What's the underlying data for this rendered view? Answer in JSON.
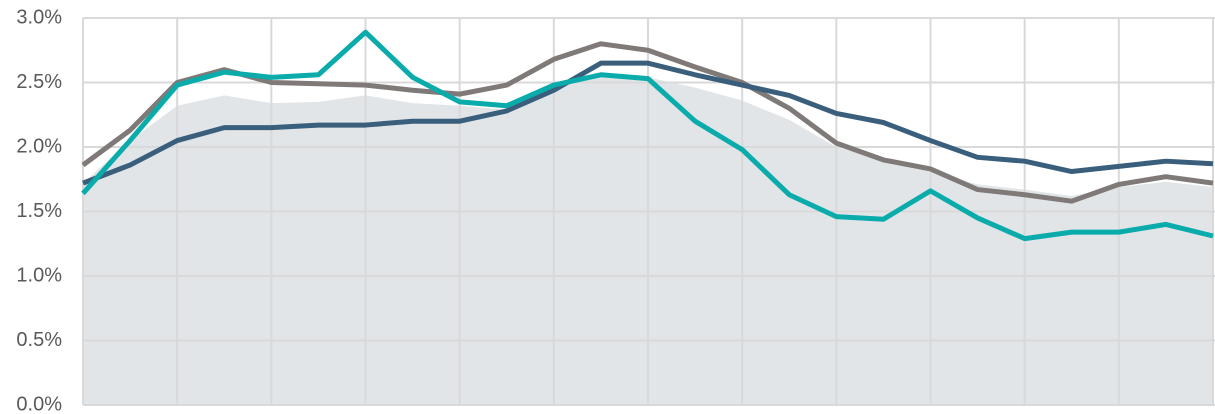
{
  "chart_data": {
    "type": "line",
    "categories": [
      null,
      null,
      null,
      null,
      null,
      null,
      null,
      null,
      null,
      null,
      null,
      null,
      null,
      null,
      null,
      null,
      null,
      null,
      null,
      null,
      null,
      null,
      null,
      null,
      null
    ],
    "series": [
      {
        "type": "area",
        "color": "#e1e5e8",
        "values": [
          1.72,
          2.05,
          2.32,
          2.4,
          2.34,
          2.35,
          2.4,
          2.34,
          2.32,
          2.29,
          2.5,
          2.56,
          2.54,
          2.46,
          2.36,
          2.21,
          2.0,
          1.9,
          1.81,
          1.71,
          1.67,
          1.62,
          1.69,
          1.73,
          1.69
        ]
      },
      {
        "color": "#7f7a78",
        "values": [
          1.86,
          2.13,
          2.5,
          2.6,
          2.5,
          2.49,
          2.48,
          2.44,
          2.41,
          2.48,
          2.68,
          2.8,
          2.75,
          2.62,
          2.5,
          2.3,
          2.03,
          1.9,
          1.83,
          1.67,
          1.63,
          1.58,
          1.71,
          1.77,
          1.72
        ]
      },
      {
        "color": "#3a5f7d",
        "values": [
          1.72,
          1.86,
          2.05,
          2.15,
          2.15,
          2.17,
          2.17,
          2.2,
          2.2,
          2.28,
          2.44,
          2.65,
          2.65,
          2.56,
          2.48,
          2.4,
          2.26,
          2.19,
          2.05,
          1.92,
          1.89,
          1.81,
          1.85,
          1.89,
          1.87
        ]
      },
      {
        "color": "#0aabab",
        "values": [
          1.64,
          2.05,
          2.48,
          2.58,
          2.54,
          2.56,
          2.89,
          2.54,
          2.35,
          2.32,
          2.48,
          2.56,
          2.53,
          2.2,
          1.98,
          1.63,
          1.46,
          1.44,
          1.66,
          1.45,
          1.29,
          1.34,
          1.34,
          1.4,
          1.31
        ]
      }
    ],
    "ylim": [
      0,
      3
    ],
    "yticks": [
      {
        "value": 0,
        "label": "0.0%"
      },
      {
        "value": 0.5,
        "label": "0.5%"
      },
      {
        "value": 1,
        "label": "1.0%"
      },
      {
        "value": 1.5,
        "label": "1.5%"
      },
      {
        "value": 2,
        "label": "2.0%"
      },
      {
        "value": 2.5,
        "label": "2.5%"
      },
      {
        "value": 3,
        "label": "3.0%"
      }
    ],
    "grid": true
  }
}
